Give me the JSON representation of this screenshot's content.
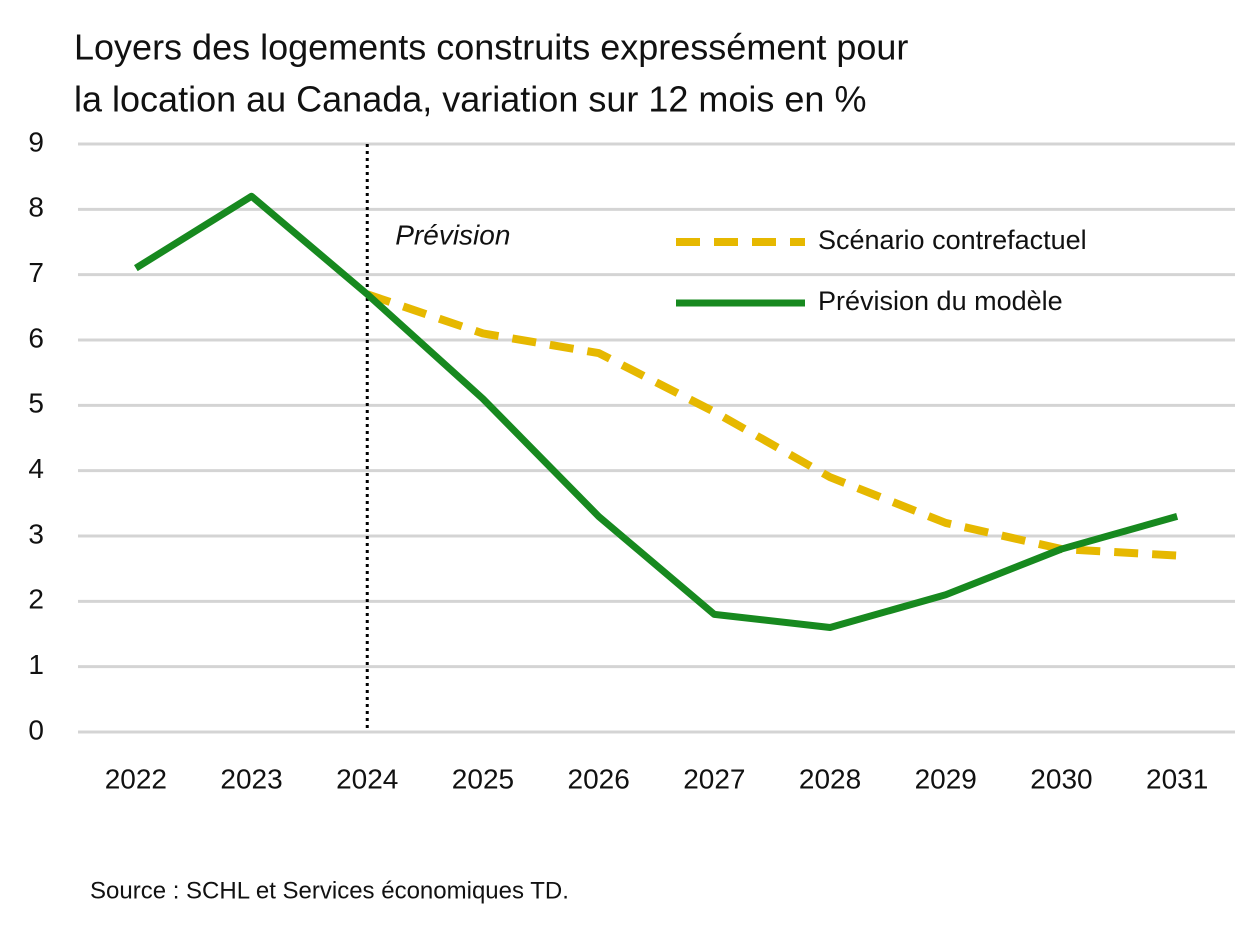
{
  "chart_data": {
    "type": "line",
    "title": [
      "Loyers des logements construits expressément pour",
      "la location au Canada, variation sur 12 mois en %"
    ],
    "categories": [
      "2022",
      "2023",
      "2024",
      "2025",
      "2026",
      "2027",
      "2028",
      "2029",
      "2030",
      "2031"
    ],
    "series": [
      {
        "name": "Scénario contrefactuel",
        "color": "#e6b800",
        "dashed": true,
        "values": [
          null,
          null,
          6.7,
          6.1,
          5.8,
          4.9,
          3.9,
          3.2,
          2.8,
          2.7
        ]
      },
      {
        "name": "Prévision du modèle",
        "color": "#17891f",
        "dashed": false,
        "values": [
          7.1,
          8.2,
          6.7,
          5.1,
          3.3,
          1.8,
          1.6,
          2.1,
          2.8,
          3.3
        ]
      }
    ],
    "annotation": {
      "text": "Prévision",
      "x": "2024"
    },
    "ylim": [
      0,
      9
    ],
    "yticks": [
      0,
      1,
      2,
      3,
      4,
      5,
      6,
      7,
      8,
      9
    ],
    "grid": true,
    "legend": "upper right",
    "source": "Source : SCHL et Services économiques TD."
  }
}
